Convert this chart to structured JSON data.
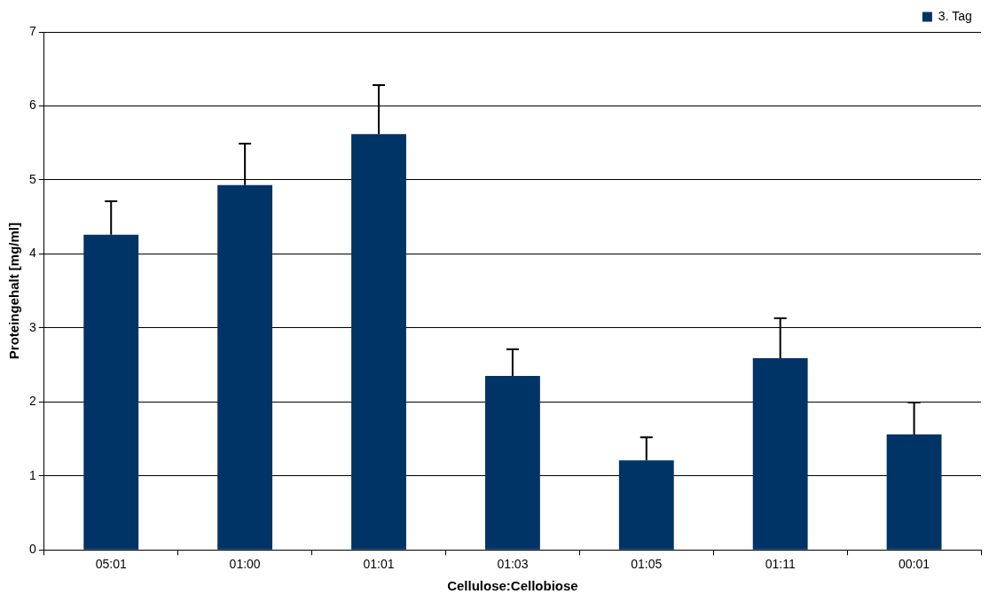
{
  "chart_data": {
    "type": "bar",
    "xlabel": "Cellulose:Cellobiose",
    "ylabel": "Proteingehalt [mg/ml]",
    "categories": [
      "05:01",
      "01:00",
      "01:01",
      "01:03",
      "01:05",
      "01:11",
      "00:01"
    ],
    "series": [
      {
        "name": "3. Tag",
        "color": "#003366",
        "values": [
          4.26,
          4.93,
          5.62,
          2.35,
          1.21,
          2.59,
          1.56
        ],
        "errors": [
          [
            4.26,
            4.71
          ],
          [
            4.93,
            5.49
          ],
          [
            5.62,
            6.28
          ],
          [
            2.35,
            2.71
          ],
          [
            1.21,
            1.52
          ],
          [
            2.59,
            3.13
          ],
          [
            1.56,
            1.99
          ]
        ]
      }
    ],
    "ylim": [
      0,
      7
    ],
    "yticks": [
      0,
      1,
      2,
      3,
      4,
      5,
      6,
      7
    ],
    "grid": "y",
    "legend": "top right"
  }
}
